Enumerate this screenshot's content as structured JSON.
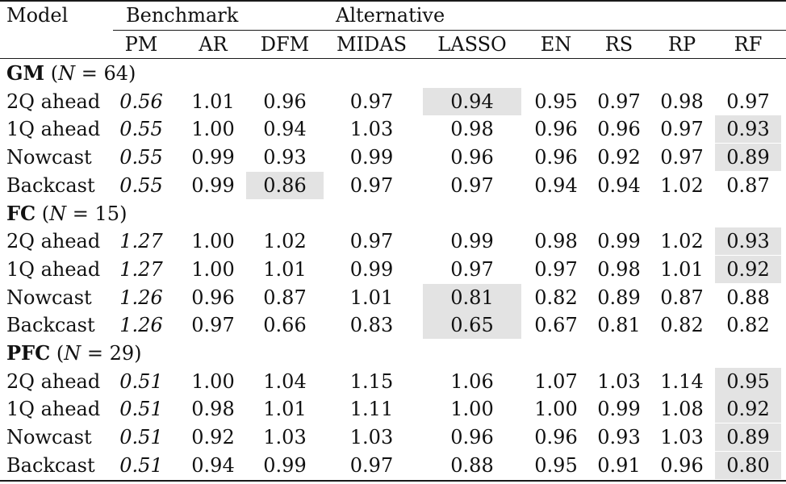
{
  "header": {
    "model": "Model",
    "benchmark": "Benchmark",
    "alternative": "Alternative",
    "columns": [
      "PM",
      "AR",
      "DFM",
      "MIDAS",
      "LASSO",
      "EN",
      "RS",
      "RP",
      "RF"
    ]
  },
  "groups": [
    {
      "name": "GM",
      "n_label": "N",
      "n_eq": "= 64",
      "rows": [
        {
          "label": "2Q ahead",
          "values": [
            "0.56",
            "1.01",
            "0.96",
            "0.97",
            "0.94",
            "0.95",
            "0.97",
            "0.98",
            "0.97"
          ],
          "highlight": [
            4
          ]
        },
        {
          "label": "1Q ahead",
          "values": [
            "0.55",
            "1.00",
            "0.94",
            "1.03",
            "0.98",
            "0.96",
            "0.96",
            "0.97",
            "0.93"
          ],
          "highlight": [
            8
          ]
        },
        {
          "label": "Nowcast",
          "values": [
            "0.55",
            "0.99",
            "0.93",
            "0.99",
            "0.96",
            "0.96",
            "0.92",
            "0.97",
            "0.89"
          ],
          "highlight": [
            8
          ]
        },
        {
          "label": "Backcast",
          "values": [
            "0.55",
            "0.99",
            "0.86",
            "0.97",
            "0.97",
            "0.94",
            "0.94",
            "1.02",
            "0.87"
          ],
          "highlight": [
            2
          ]
        }
      ]
    },
    {
      "name": "FC",
      "n_label": "N",
      "n_eq": "= 15",
      "rows": [
        {
          "label": "2Q ahead",
          "values": [
            "1.27",
            "1.00",
            "1.02",
            "0.97",
            "0.99",
            "0.98",
            "0.99",
            "1.02",
            "0.93"
          ],
          "highlight": [
            8
          ]
        },
        {
          "label": "1Q ahead",
          "values": [
            "1.27",
            "1.00",
            "1.01",
            "0.99",
            "0.97",
            "0.97",
            "0.98",
            "1.01",
            "0.92"
          ],
          "highlight": [
            8
          ]
        },
        {
          "label": "Nowcast",
          "values": [
            "1.26",
            "0.96",
            "0.87",
            "1.01",
            "0.81",
            "0.82",
            "0.89",
            "0.87",
            "0.88"
          ],
          "highlight": [
            4
          ]
        },
        {
          "label": "Backcast",
          "values": [
            "1.26",
            "0.97",
            "0.66",
            "0.83",
            "0.65",
            "0.67",
            "0.81",
            "0.82",
            "0.82"
          ],
          "highlight": [
            4
          ]
        }
      ]
    },
    {
      "name": "PFC",
      "n_label": "N",
      "n_eq": "= 29",
      "rows": [
        {
          "label": "2Q ahead",
          "values": [
            "0.51",
            "1.00",
            "1.04",
            "1.15",
            "1.06",
            "1.07",
            "1.03",
            "1.14",
            "0.95"
          ],
          "highlight": [
            8
          ]
        },
        {
          "label": "1Q ahead",
          "values": [
            "0.51",
            "0.98",
            "1.01",
            "1.11",
            "1.00",
            "1.00",
            "0.99",
            "1.08",
            "0.92"
          ],
          "highlight": [
            8
          ]
        },
        {
          "label": "Nowcast",
          "values": [
            "0.51",
            "0.92",
            "1.03",
            "1.03",
            "0.96",
            "0.96",
            "0.93",
            "1.03",
            "0.89"
          ],
          "highlight": [
            8
          ]
        },
        {
          "label": "Backcast",
          "values": [
            "0.51",
            "0.94",
            "0.99",
            "0.97",
            "0.88",
            "0.95",
            "0.91",
            "0.96",
            "0.80"
          ],
          "highlight": [
            8
          ]
        }
      ]
    }
  ]
}
